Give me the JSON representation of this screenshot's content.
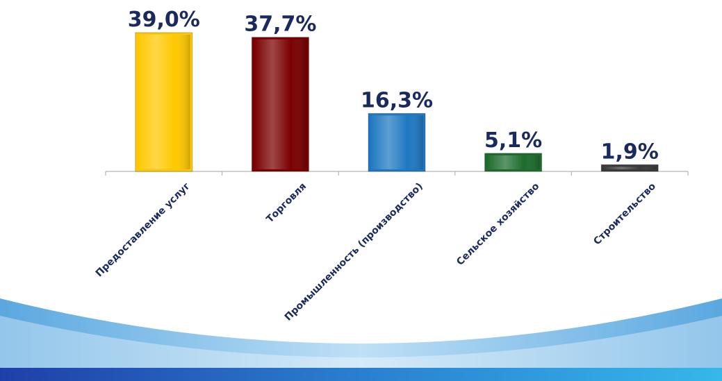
{
  "chart_data": {
    "type": "bar",
    "categories": [
      "Предоставление услуг",
      "Торговля",
      "Промышленность (производство)",
      "Сельское хозяйство",
      "Строительство"
    ],
    "values": [
      39.0,
      37.7,
      16.3,
      5.1,
      1.9
    ],
    "value_labels": [
      "39,0%",
      "37,7%",
      "16,3%",
      "5,1%",
      "1,9%"
    ],
    "unit": "%",
    "title": "",
    "xlabel": "",
    "ylabel": "",
    "ylim": [
      0,
      40
    ],
    "grid": false,
    "legend": "none",
    "colors": [
      "#ffc800",
      "#7a0000",
      "#1f78c1",
      "#1e6b2e",
      "#3a3a3a"
    ]
  }
}
